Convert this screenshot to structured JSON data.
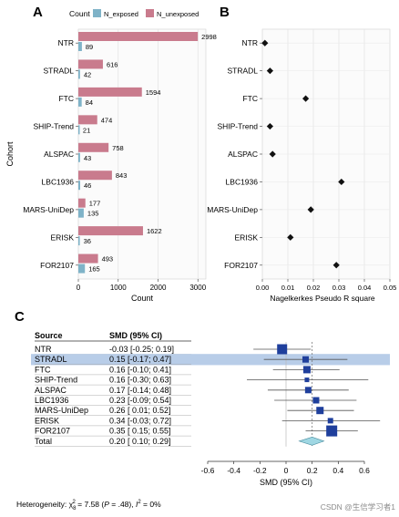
{
  "chart_data": [
    {
      "panel": "A",
      "type": "bar",
      "orientation": "horizontal",
      "xlabel": "Count",
      "ylabel": "Cohort",
      "legend_title": "Count",
      "legend_position": "top",
      "xlim": [
        0,
        3200
      ],
      "xticks": [
        "0",
        "1000",
        "2000",
        "3000"
      ],
      "categories": [
        "NTR",
        "STRADL",
        "FTC",
        "SHIP-Trend",
        "ALSPAC",
        "LBC1936",
        "MARS-UniDep",
        "ERISK",
        "FOR2107"
      ],
      "series": [
        {
          "name": "N_exposed",
          "color": "#7fb3c8",
          "values": [
            89,
            42,
            84,
            21,
            43,
            46,
            135,
            36,
            165
          ]
        },
        {
          "name": "N_unexposed",
          "color": "#c97b8d",
          "values": [
            2998,
            616,
            1594,
            474,
            758,
            843,
            177,
            1622,
            493
          ]
        }
      ],
      "grid": true
    },
    {
      "panel": "B",
      "type": "scatter",
      "xlabel": "Nagelkerkes Pseudo R square",
      "xlim": [
        0,
        0.05
      ],
      "xticks": [
        "0.00",
        "0.01",
        "0.02",
        "0.03",
        "0.04",
        "0.05"
      ],
      "categories": [
        "NTR",
        "STRADL",
        "FTC",
        "SHIP-Trend",
        "ALSPAC",
        "LBC1936",
        "MARS-UniDep",
        "ERISK",
        "FOR2107"
      ],
      "values": [
        0.001,
        0.003,
        0.017,
        0.003,
        0.004,
        0.031,
        0.019,
        0.011,
        0.029
      ],
      "grid": true
    },
    {
      "panel": "C",
      "type": "forest",
      "col_source": "Source",
      "col_smd": "SMD (95% CI)",
      "xlabel": "SMD (95% CI)",
      "xlim": [
        -0.6,
        0.6
      ],
      "xticks": [
        "-0.6",
        "-0.4",
        "-0.2",
        "0",
        "0.2",
        "0.4",
        "0.6"
      ],
      "pooled_reference": 0.2,
      "rows": [
        {
          "source": "NTR",
          "label": "-0.03 [-0.25; 0.19]",
          "est": -0.03,
          "lo": -0.25,
          "hi": 0.19,
          "weight": 11
        },
        {
          "source": "STRADL",
          "label": "0.15 [-0.17; 0.47]",
          "est": 0.15,
          "lo": -0.17,
          "hi": 0.47,
          "weight": 7,
          "highlight": true
        },
        {
          "source": "FTC",
          "label": "0.16 [-0.10; 0.41]",
          "est": 0.16,
          "lo": -0.1,
          "hi": 0.41,
          "weight": 8
        },
        {
          "source": "SHIP-Trend",
          "label": "0.16 [-0.30; 0.63]",
          "est": 0.16,
          "lo": -0.3,
          "hi": 0.63,
          "weight": 5
        },
        {
          "source": "ALSPAC",
          "label": "0.17 [-0.14; 0.48]",
          "est": 0.17,
          "lo": -0.14,
          "hi": 0.48,
          "weight": 7
        },
        {
          "source": "LBC1936",
          "label": "0.23 [-0.09; 0.54]",
          "est": 0.23,
          "lo": -0.09,
          "hi": 0.54,
          "weight": 7
        },
        {
          "source": "MARS-UniDep",
          "label": "0.26 [ 0.01; 0.52]",
          "est": 0.26,
          "lo": 0.01,
          "hi": 0.52,
          "weight": 8
        },
        {
          "source": "ERISK",
          "label": "0.34 [-0.03; 0.72]",
          "est": 0.34,
          "lo": -0.03,
          "hi": 0.72,
          "weight": 6
        },
        {
          "source": "FOR2107",
          "label": "0.35 [ 0.15; 0.55]",
          "est": 0.35,
          "lo": 0.15,
          "hi": 0.55,
          "weight": 12
        }
      ],
      "total": {
        "source": "Total",
        "label": "0.20 [ 0.10; 0.29]",
        "est": 0.2,
        "lo": 0.1,
        "hi": 0.29
      },
      "heterogeneity": {
        "prefix": "Heterogeneity: χ",
        "sub": "8",
        "sup": "2",
        "mid": " = 7.58 (",
        "p_label": "P",
        "p_value": " = .48), ",
        "i_label": "I",
        "i_sup": "2",
        "i_value": " = 0%"
      }
    }
  ],
  "labels": {
    "panel_a": "A",
    "panel_b": "B",
    "panel_c": "C"
  },
  "watermark": "CSDN @生信学习者1",
  "colors": {
    "exposed": "#7fb3c8",
    "unexposed": "#c97b8d",
    "square": "#1f3f9c",
    "diamond": "#9fd7e3",
    "highlight": "#b8cde8",
    "grid": "#e3e3e3"
  }
}
